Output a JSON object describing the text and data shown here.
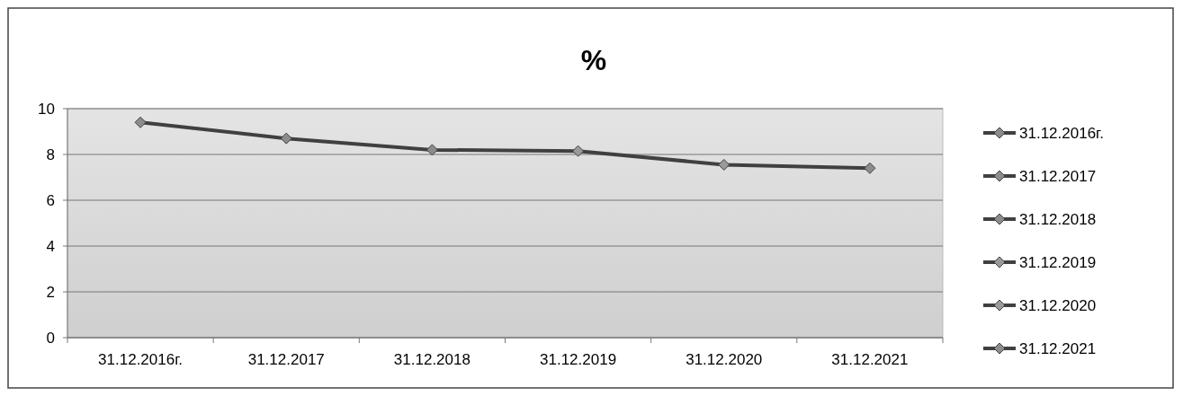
{
  "chart_data": {
    "type": "line",
    "title": "%",
    "categories": [
      "31.12.2016г.",
      "31.12.2017",
      "31.12.2018",
      "31.12.2019",
      "31.12.2020",
      "31.12.2021"
    ],
    "series": [
      {
        "color": "#404040",
        "colors": [
          "#8c8c8c",
          "#8c8c8c",
          "#8c8c8c",
          "#9a9a9a",
          "#9a9a9a",
          "#8c8c8c"
        ],
        "values": [
          9.4,
          8.7,
          8.2,
          8.15,
          7.55,
          7.4
        ]
      }
    ],
    "ylim": [
      0,
      10
    ],
    "yticks": [
      0,
      2,
      4,
      6,
      8,
      10
    ],
    "grid": "y",
    "marker": "diamond",
    "line_style": "solid"
  }
}
